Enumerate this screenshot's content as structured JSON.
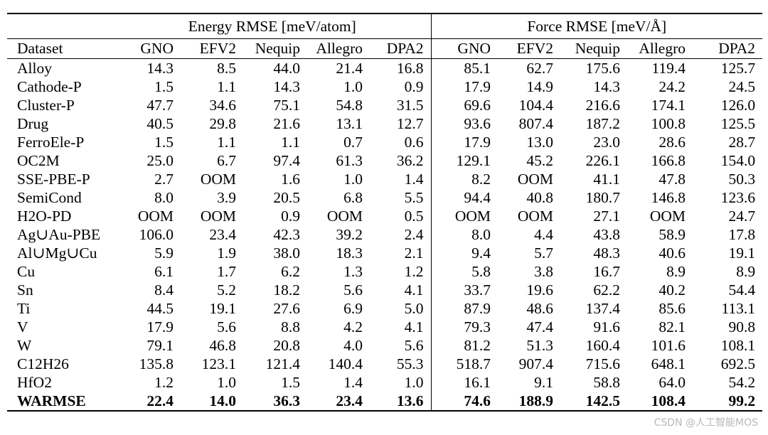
{
  "table": {
    "groups": [
      "Energy RMSE [meV/atom]",
      "Force RMSE [meV/Å]"
    ],
    "columns": [
      "Dataset",
      "GNO",
      "EFV2",
      "Nequip",
      "Allegro",
      "DPA2",
      "GNO",
      "EFV2",
      "Nequip",
      "Allegro",
      "DPA2"
    ],
    "rows": [
      [
        "Alloy",
        "14.3",
        "8.5",
        "44.0",
        "21.4",
        "16.8",
        "85.1",
        "62.7",
        "175.6",
        "119.4",
        "125.7"
      ],
      [
        "Cathode-P",
        "1.5",
        "1.1",
        "14.3",
        "1.0",
        "0.9",
        "17.9",
        "14.9",
        "14.3",
        "24.2",
        "24.5"
      ],
      [
        "Cluster-P",
        "47.7",
        "34.6",
        "75.1",
        "54.8",
        "31.5",
        "69.6",
        "104.4",
        "216.6",
        "174.1",
        "126.0"
      ],
      [
        "Drug",
        "40.5",
        "29.8",
        "21.6",
        "13.1",
        "12.7",
        "93.6",
        "807.4",
        "187.2",
        "100.8",
        "125.5"
      ],
      [
        "FerroEle-P",
        "1.5",
        "1.1",
        "1.1",
        "0.7",
        "0.6",
        "17.9",
        "13.0",
        "23.0",
        "28.6",
        "28.7"
      ],
      [
        "OC2M",
        "25.0",
        "6.7",
        "97.4",
        "61.3",
        "36.2",
        "129.1",
        "45.2",
        "226.1",
        "166.8",
        "154.0"
      ],
      [
        "SSE-PBE-P",
        "2.7",
        "OOM",
        "1.6",
        "1.0",
        "1.4",
        "8.2",
        "OOM",
        "41.1",
        "47.8",
        "50.3"
      ],
      [
        "SemiCond",
        "8.0",
        "3.9",
        "20.5",
        "6.8",
        "5.5",
        "94.4",
        "40.8",
        "180.7",
        "146.8",
        "123.6"
      ],
      [
        "H2O-PD",
        "OOM",
        "OOM",
        "0.9",
        "OOM",
        "0.5",
        "OOM",
        "OOM",
        "27.1",
        "OOM",
        "24.7"
      ],
      [
        "Ag∪Au-PBE",
        "106.0",
        "23.4",
        "42.3",
        "39.2",
        "2.4",
        "8.0",
        "4.4",
        "43.8",
        "58.9",
        "17.8"
      ],
      [
        "Al∪Mg∪Cu",
        "5.9",
        "1.9",
        "38.0",
        "18.3",
        "2.1",
        "9.4",
        "5.7",
        "48.3",
        "40.6",
        "19.1"
      ],
      [
        "Cu",
        "6.1",
        "1.7",
        "6.2",
        "1.3",
        "1.2",
        "5.8",
        "3.8",
        "16.7",
        "8.9",
        "8.9"
      ],
      [
        "Sn",
        "8.4",
        "5.2",
        "18.2",
        "5.6",
        "4.1",
        "33.7",
        "19.6",
        "62.2",
        "40.2",
        "54.4"
      ],
      [
        "Ti",
        "44.5",
        "19.1",
        "27.6",
        "6.9",
        "5.0",
        "87.9",
        "48.6",
        "137.4",
        "85.6",
        "113.1"
      ],
      [
        "V",
        "17.9",
        "5.6",
        "8.8",
        "4.2",
        "4.1",
        "79.3",
        "47.4",
        "91.6",
        "82.1",
        "90.8"
      ],
      [
        "W",
        "79.1",
        "46.8",
        "20.8",
        "4.0",
        "5.6",
        "81.2",
        "51.3",
        "160.4",
        "101.6",
        "108.1"
      ],
      [
        "C12H26",
        "135.8",
        "123.1",
        "121.4",
        "140.4",
        "55.3",
        "518.7",
        "907.4",
        "715.6",
        "648.1",
        "692.5"
      ],
      [
        "HfO2",
        "1.2",
        "1.0",
        "1.5",
        "1.4",
        "1.0",
        "16.1",
        "9.1",
        "58.8",
        "64.0",
        "54.2"
      ]
    ],
    "summary_row": [
      "WARMSE",
      "22.4",
      "14.0",
      "36.3",
      "23.4",
      "13.6",
      "74.6",
      "188.9",
      "142.5",
      "108.4",
      "99.2"
    ]
  },
  "watermark": "CSDN @人工智能MOS"
}
